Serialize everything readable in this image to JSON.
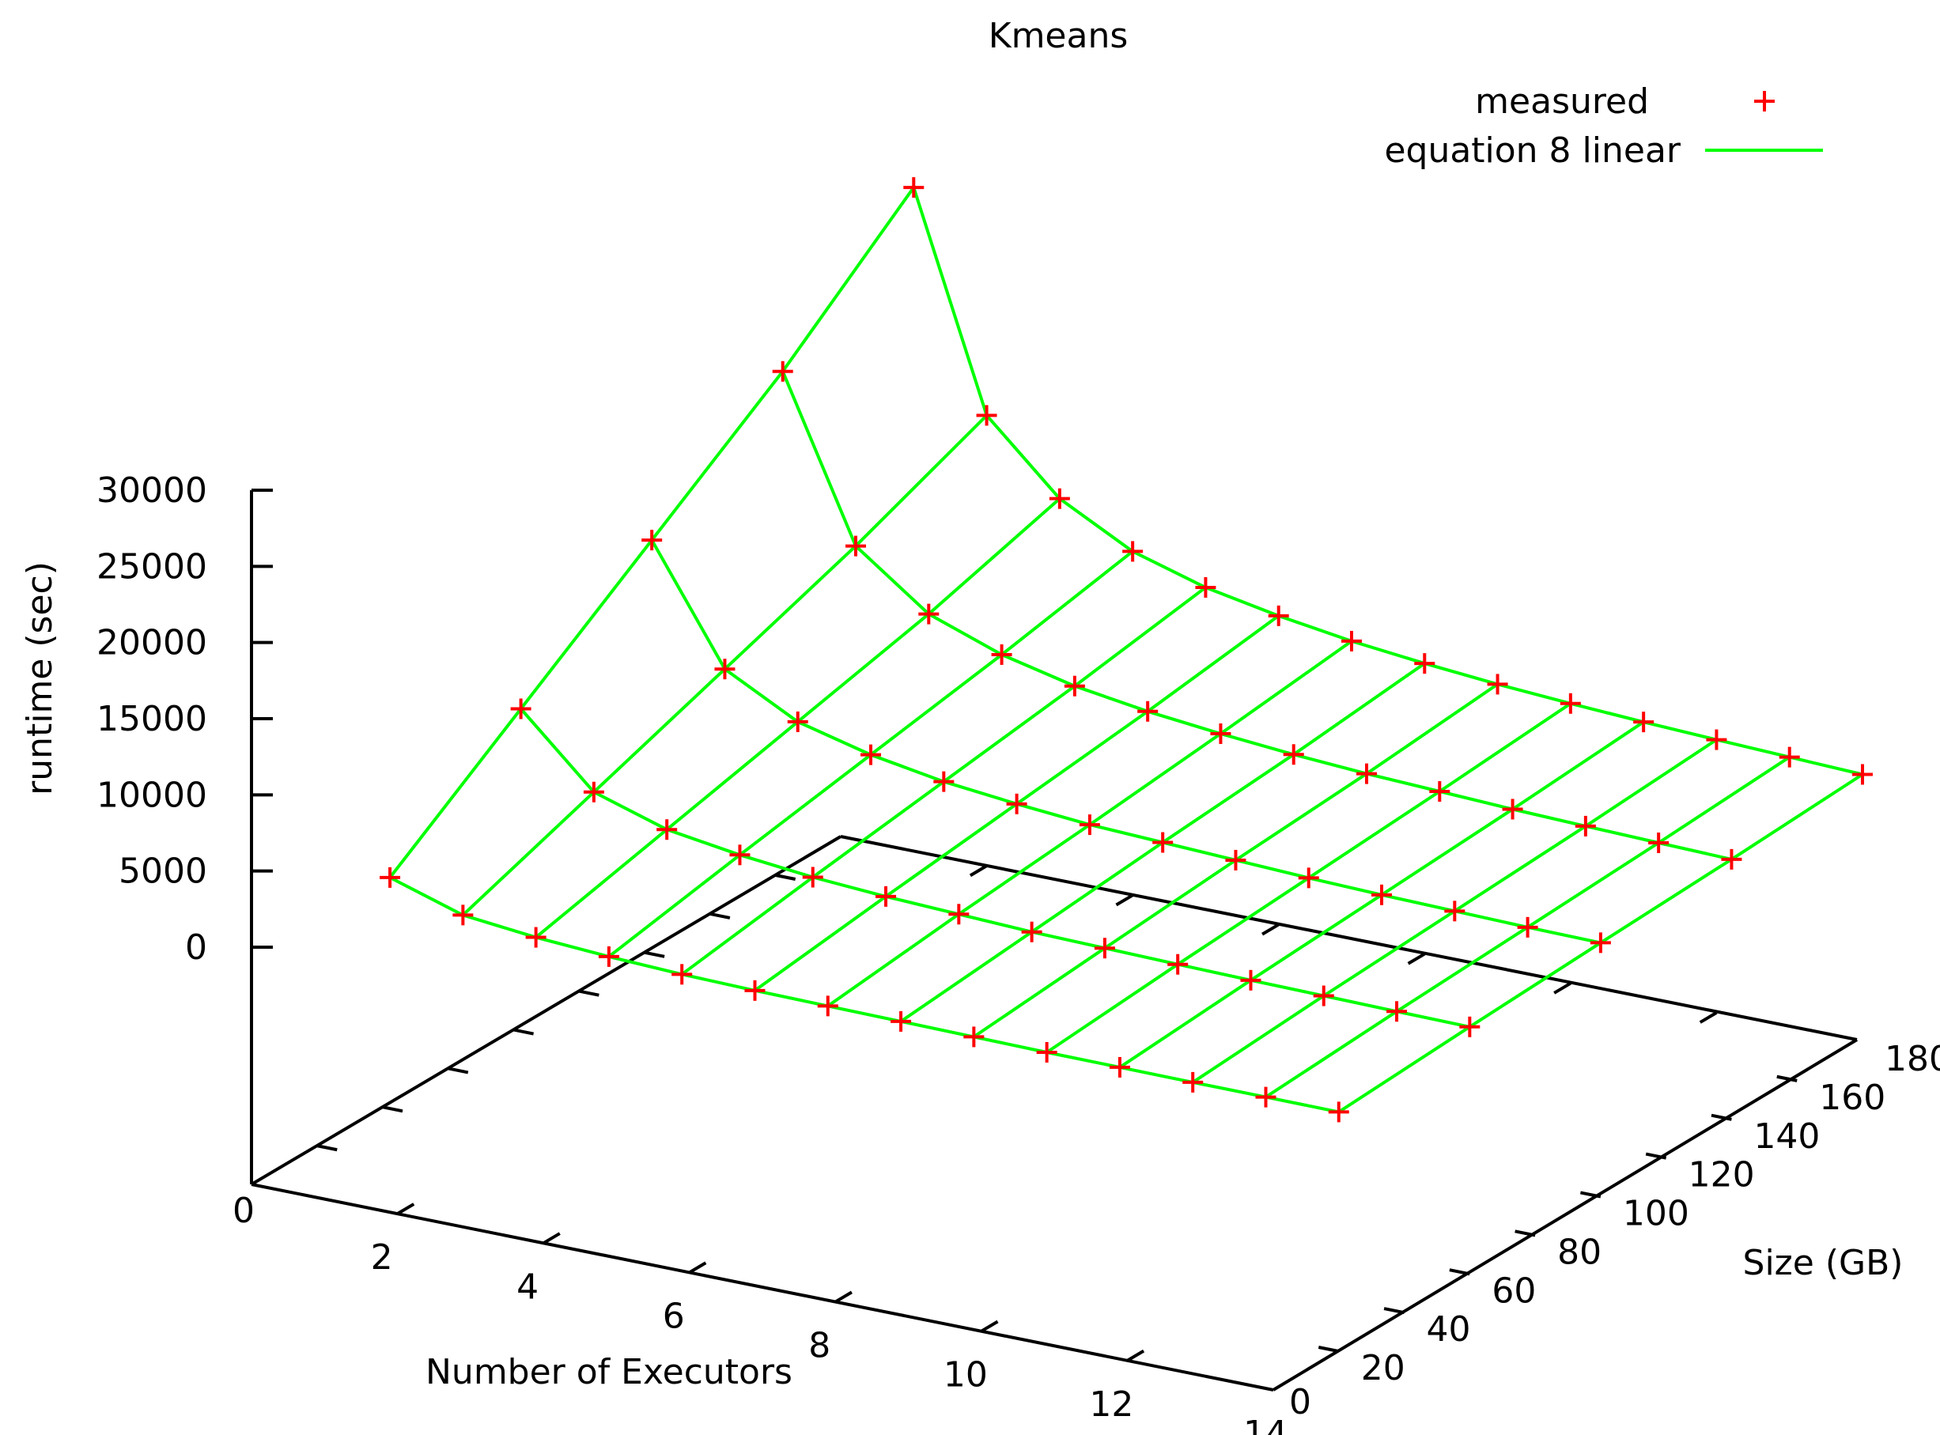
{
  "chart_data": {
    "type": "surface3d",
    "title": "Kmeans",
    "xlabel": "Number of Executors",
    "ylabel": "Size (GB)",
    "zlabel": "runtime (sec)",
    "xlim": [
      0,
      14
    ],
    "ylim": [
      0,
      180
    ],
    "zlim": [
      0,
      30000
    ],
    "x_ticks": [
      "0",
      "2",
      "4",
      "6",
      "8",
      "10",
      "12",
      "14"
    ],
    "y_ticks": [
      "0",
      "20",
      "40",
      "60",
      "80",
      "100",
      "120",
      "140",
      "160",
      "180"
    ],
    "z_ticks": [
      "0",
      "5000",
      "10000",
      "15000",
      "20000",
      "25000",
      "30000"
    ],
    "legend_position": "top-right",
    "legend": [
      {
        "label": "measured",
        "marker": "plus",
        "color": "#ff0000"
      },
      {
        "label": "equation 8 linear",
        "marker": "line",
        "color": "#00ff00"
      }
    ],
    "executors": [
      1,
      2,
      3,
      4,
      5,
      6,
      7,
      8,
      9,
      10,
      11,
      12,
      13,
      14
    ],
    "sizes_gb": [
      20,
      60,
      100,
      140,
      180
    ],
    "series": [
      {
        "name": "measured",
        "size_gb": 20,
        "values": [
          3000,
          1500,
          1000,
          700,
          500,
          400,
          350,
          300,
          250,
          200,
          180,
          160,
          150,
          140
        ]
      },
      {
        "name": "measured",
        "size_gb": 60,
        "values": [
          9000,
          4500,
          3000,
          2300,
          1800,
          1500,
          1300,
          1100,
          1000,
          900,
          820,
          760,
          700,
          650
        ]
      },
      {
        "name": "measured",
        "size_gb": 100,
        "values": [
          15000,
          7500,
          5000,
          3800,
          3000,
          2500,
          2100,
          1900,
          1700,
          1500,
          1350,
          1250,
          1150,
          1100
        ]
      },
      {
        "name": "measured",
        "size_gb": 140,
        "values": [
          21000,
          10500,
          7000,
          5300,
          4200,
          3500,
          3000,
          2600,
          2300,
          2100,
          1900,
          1750,
          1620,
          1500
        ]
      },
      {
        "name": "measured",
        "size_gb": 180,
        "values": [
          28000,
          14000,
          9500,
          7000,
          5600,
          4700,
          4000,
          3500,
          3100,
          2800,
          2550,
          2350,
          2170,
          2000
        ]
      }
    ]
  }
}
